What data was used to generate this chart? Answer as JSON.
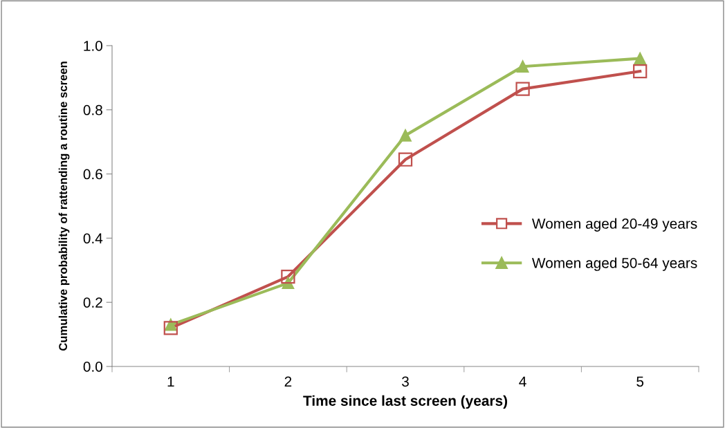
{
  "chart_data": {
    "type": "line",
    "xlabel": "Time since last screen (years)",
    "ylabel": "Cumulative probability of rattending a routine screen",
    "categories": [
      "1",
      "2",
      "3",
      "4",
      "5"
    ],
    "series": [
      {
        "name": "Women aged 20-49 years",
        "color": "#c0504d",
        "marker": "square",
        "values": [
          0.12,
          0.28,
          0.645,
          0.865,
          0.92
        ]
      },
      {
        "name": "Women aged 50-64 years",
        "color": "#9bbb59",
        "marker": "triangle",
        "values": [
          0.13,
          0.26,
          0.72,
          0.935,
          0.96
        ]
      }
    ],
    "ylim": [
      0,
      1.0
    ],
    "yticks": [
      {
        "value": 0,
        "label": "0.0"
      },
      {
        "value": 0.2,
        "label": "0.2"
      },
      {
        "value": 0.4,
        "label": "0.4"
      },
      {
        "value": 0.6,
        "label": "0.6"
      },
      {
        "value": 0.8,
        "label": "0.8"
      },
      {
        "value": 1.0,
        "label": "1.0"
      }
    ],
    "grid": false,
    "legend": "right",
    "line_style": "solid"
  }
}
